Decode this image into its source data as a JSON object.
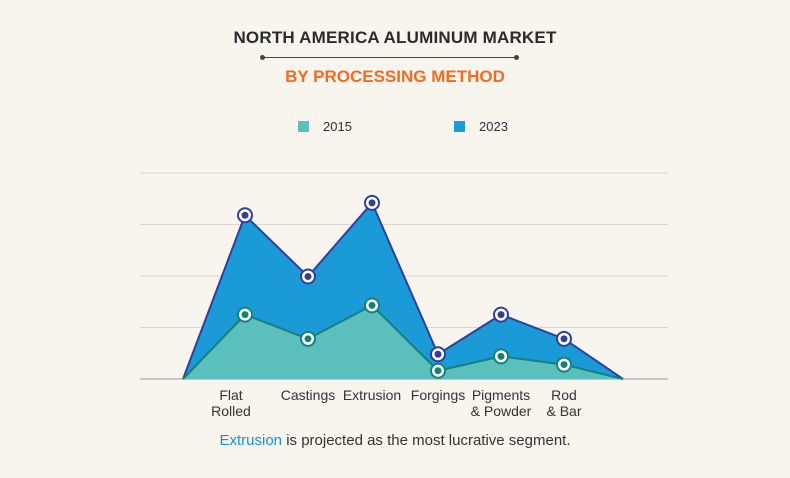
{
  "title": "NORTH AMERICA ALUMINUM MARKET",
  "subtitle": "BY PROCESSING METHOD",
  "caption": {
    "highlight": "Extrusion",
    "rest": " is projected as the most lucrative segment."
  },
  "colors": {
    "background": "#f8f4ee",
    "title": "#2b2b2b",
    "subtitle": "#f26b21",
    "series_2015": "#5bbfbd",
    "series_2023": "#1b9ad8",
    "line_2015": "#16807a",
    "line_2023": "#2f3f9e",
    "caption_highlight": "#1a8fd1"
  },
  "chart_data": {
    "type": "area",
    "categories": [
      [
        "Flat",
        "Rolled"
      ],
      [
        "Castings"
      ],
      [
        "Extrusion"
      ],
      [
        "Forgings"
      ],
      [
        "Pigments",
        "& Powder"
      ],
      [
        "Rod",
        "& Bar"
      ]
    ],
    "series": [
      {
        "name": "2015",
        "values": [
          12.5,
          7.8,
          14.3,
          1.6,
          4.4,
          2.8
        ]
      },
      {
        "name": "2023",
        "values": [
          31.8,
          19.9,
          34.2,
          4.8,
          12.5,
          7.8
        ]
      }
    ],
    "ylim": [
      0,
      40
    ],
    "grid": true,
    "legend_position": "top"
  }
}
